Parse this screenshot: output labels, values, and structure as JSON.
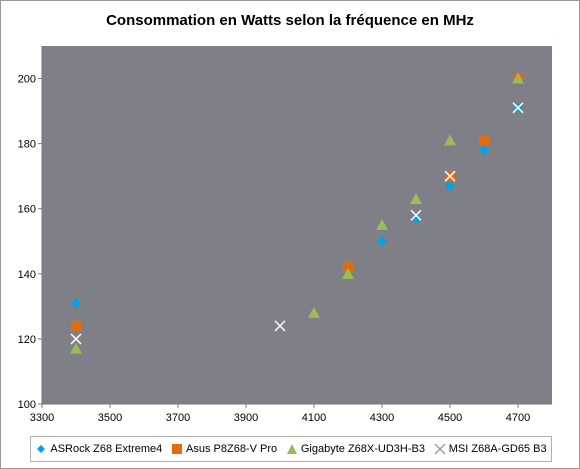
{
  "chart_data": {
    "type": "scatter",
    "title": "Consommation en Watts selon la fréquence en MHz",
    "xlabel": "",
    "ylabel": "",
    "xlim": [
      3300,
      4800
    ],
    "ylim": [
      100,
      210
    ],
    "x_ticks": [
      3300,
      3500,
      3700,
      3900,
      4100,
      4300,
      4500,
      4700
    ],
    "y_ticks": [
      100,
      120,
      140,
      160,
      180,
      200
    ],
    "grid": false,
    "legend_position": "bottom",
    "plot_background": "#7f7f87",
    "series": [
      {
        "name": "ASRock Z68 Extreme4",
        "marker": "diamond",
        "color": "#00a2e8",
        "points": [
          [
            3400,
            131
          ],
          [
            4200,
            142
          ],
          [
            4300,
            150
          ],
          [
            4400,
            157
          ],
          [
            4500,
            167
          ],
          [
            4600,
            178
          ],
          [
            4700,
            191
          ]
        ]
      },
      {
        "name": "Asus P8Z68-V Pro",
        "marker": "square",
        "color": "#e36c0a",
        "points": [
          [
            3400,
            124
          ],
          [
            4200,
            142
          ],
          [
            4500,
            170
          ],
          [
            4600,
            181
          ],
          [
            4700,
            200
          ]
        ]
      },
      {
        "name": "Gigabyte Z68X-UD3H-B3",
        "marker": "triangle",
        "color": "#9bbb59",
        "points": [
          [
            3400,
            117
          ],
          [
            4100,
            128
          ],
          [
            4200,
            140
          ],
          [
            4300,
            155
          ],
          [
            4400,
            163
          ],
          [
            4500,
            181
          ],
          [
            4700,
            200
          ]
        ]
      },
      {
        "name": "MSI Z68A-GD65 B3",
        "marker": "x",
        "color": "#ffffff",
        "points": [
          [
            3400,
            120
          ],
          [
            4000,
            124
          ],
          [
            4400,
            158
          ],
          [
            4500,
            170
          ],
          [
            4700,
            191
          ]
        ]
      }
    ]
  }
}
